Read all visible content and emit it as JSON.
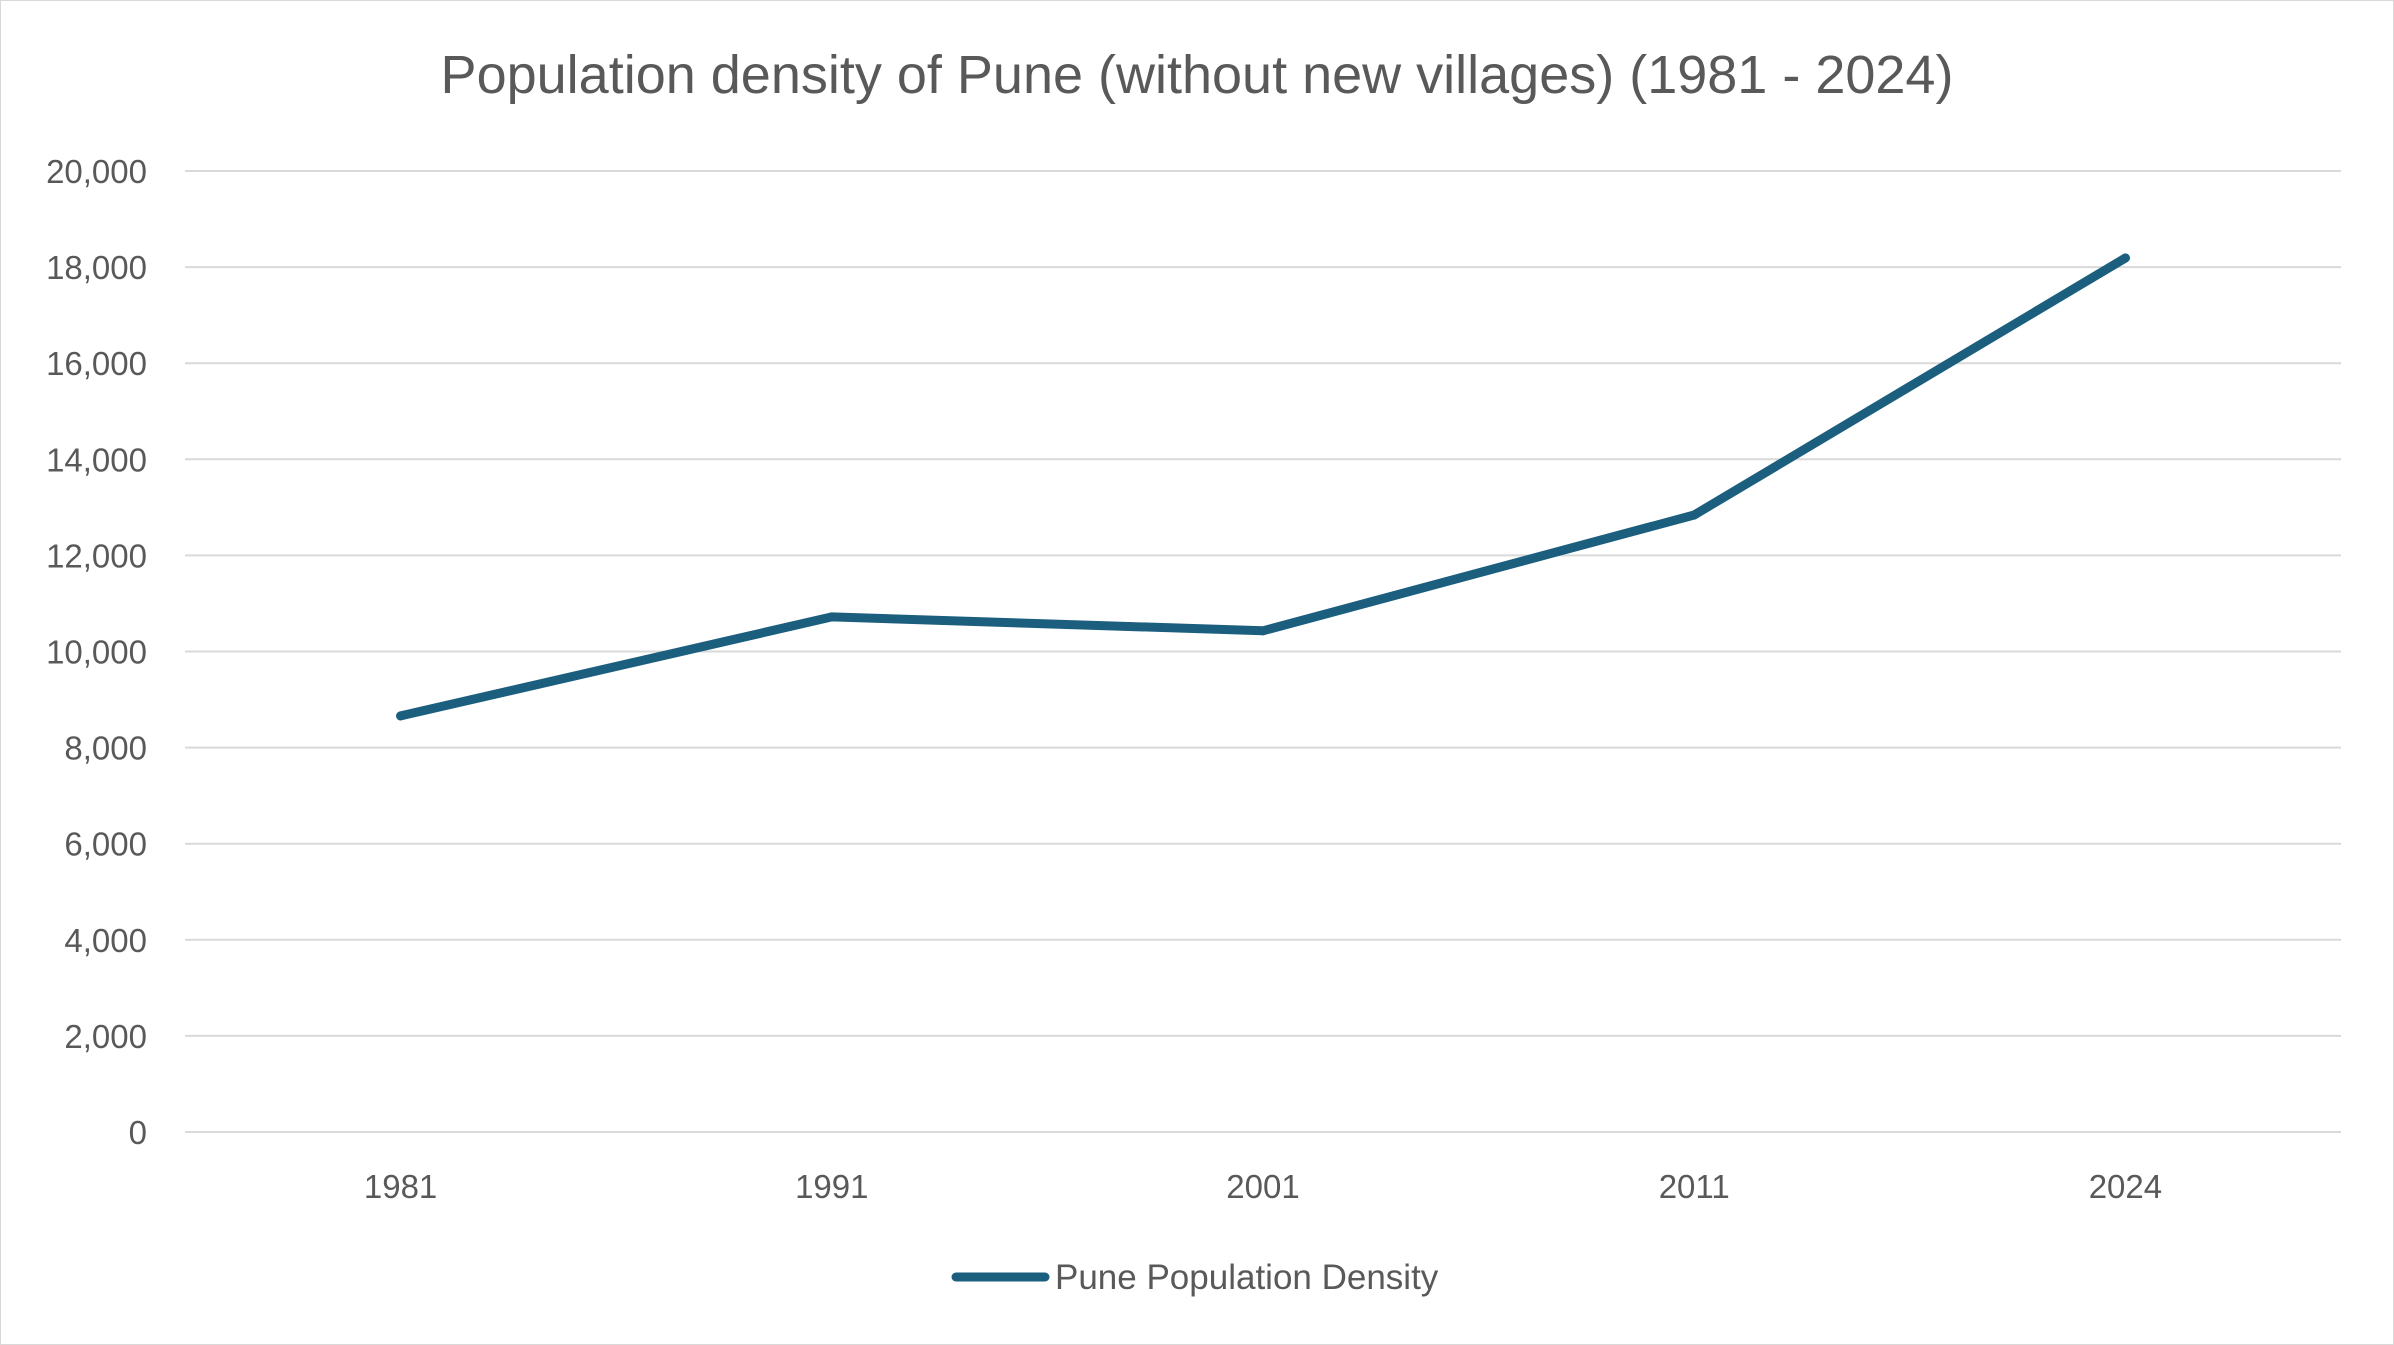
{
  "chart_data": {
    "type": "line",
    "title": "Population density of Pune (without new villages) (1981 - 2024)",
    "xlabel": "",
    "ylabel": "",
    "categories": [
      "1981",
      "1991",
      "2001",
      "2011",
      "2024"
    ],
    "series": [
      {
        "name": "Pune Population Density",
        "values": [
          8660,
          10720,
          10430,
          12840,
          18190
        ],
        "color": "#1b5e7e"
      }
    ],
    "ylim": [
      0,
      20000
    ],
    "yticks": [
      "0",
      "2,000",
      "4,000",
      "6,000",
      "8,000",
      "10,000",
      "12,000",
      "14,000",
      "16,000",
      "18,000",
      "20,000"
    ],
    "grid": true,
    "legend_position": "bottom"
  }
}
